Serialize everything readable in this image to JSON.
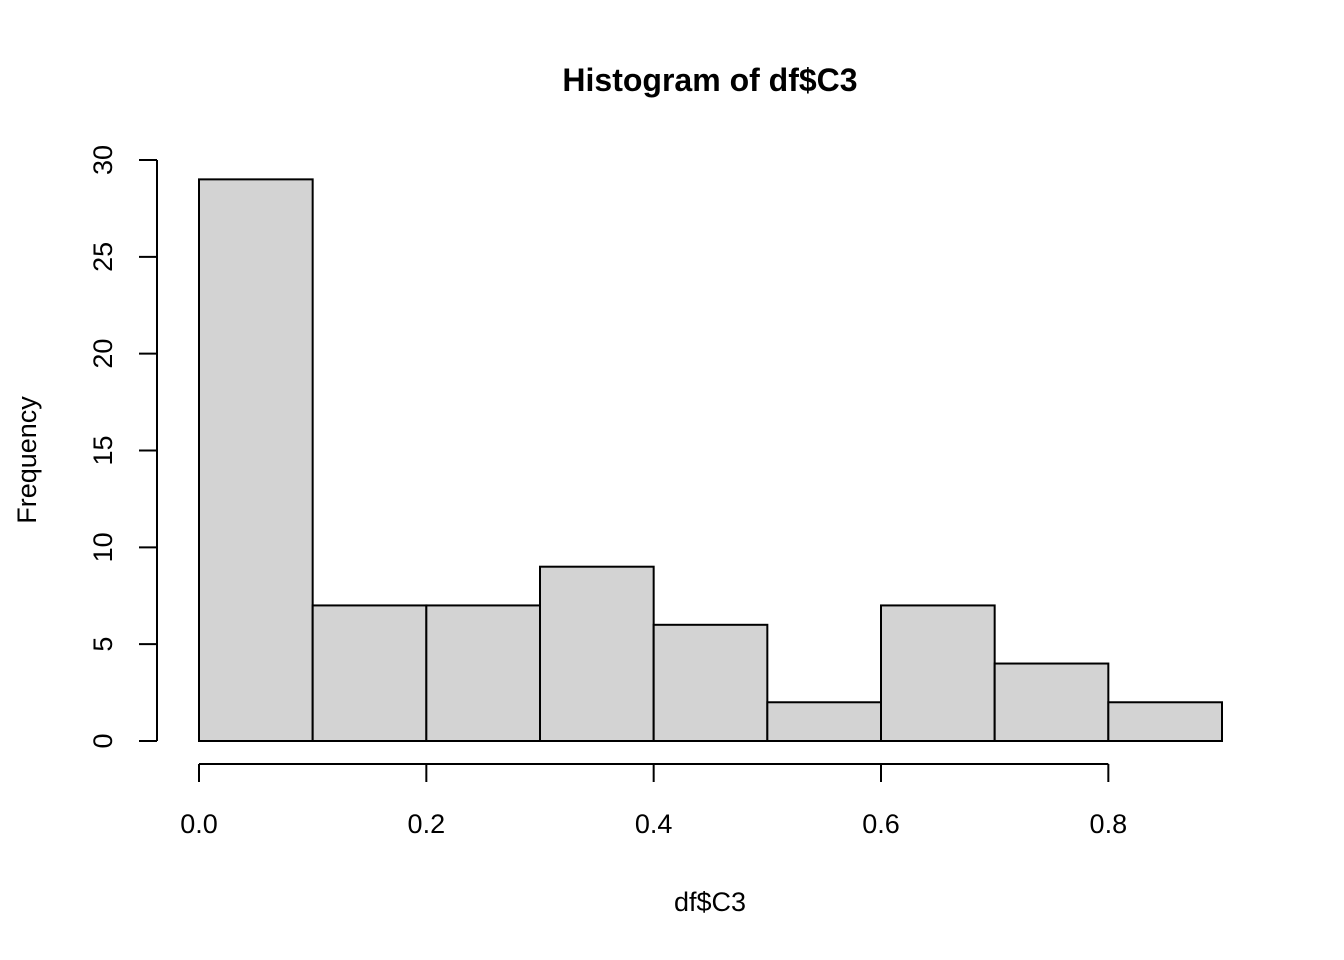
{
  "chart_data": {
    "type": "bar",
    "title": "Histogram of df$C3",
    "xlabel": "df$C3",
    "ylabel": "Frequency",
    "bins": [
      {
        "start": 0.0,
        "end": 0.1,
        "count": 29
      },
      {
        "start": 0.1,
        "end": 0.2,
        "count": 7
      },
      {
        "start": 0.2,
        "end": 0.3,
        "count": 7
      },
      {
        "start": 0.3,
        "end": 0.4,
        "count": 9
      },
      {
        "start": 0.4,
        "end": 0.5,
        "count": 6
      },
      {
        "start": 0.5,
        "end": 0.6,
        "count": 2
      },
      {
        "start": 0.6,
        "end": 0.7,
        "count": 7
      },
      {
        "start": 0.7,
        "end": 0.8,
        "count": 4
      },
      {
        "start": 0.8,
        "end": 0.9,
        "count": 2
      }
    ],
    "x_ticks": [
      {
        "value": 0.0,
        "label": "0.0"
      },
      {
        "value": 0.2,
        "label": "0.2"
      },
      {
        "value": 0.4,
        "label": "0.4"
      },
      {
        "value": 0.6,
        "label": "0.6"
      },
      {
        "value": 0.8,
        "label": "0.8"
      }
    ],
    "y_ticks": [
      {
        "value": 0,
        "label": "0"
      },
      {
        "value": 5,
        "label": "5"
      },
      {
        "value": 10,
        "label": "10"
      },
      {
        "value": 15,
        "label": "15"
      },
      {
        "value": 20,
        "label": "20"
      },
      {
        "value": 25,
        "label": "25"
      },
      {
        "value": 30,
        "label": "30"
      }
    ],
    "xlim": [
      0.0,
      0.9
    ],
    "ylim": [
      0,
      30
    ],
    "grid": false,
    "legend": "none",
    "bar_color": "#d3d3d3",
    "border_color": "#000000"
  }
}
